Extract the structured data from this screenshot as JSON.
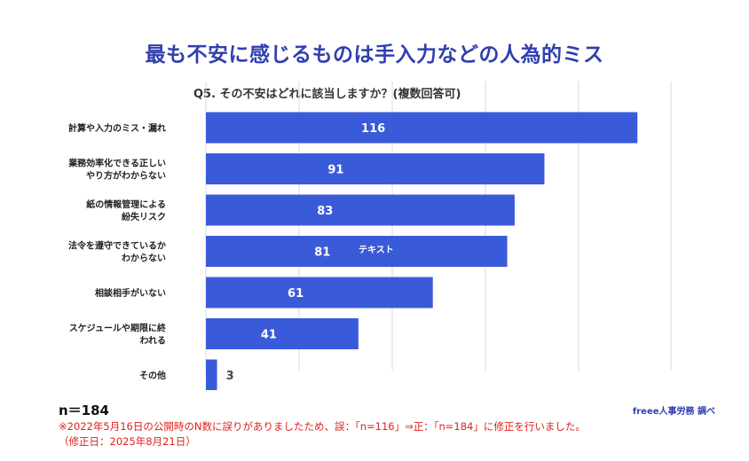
{
  "page_title": "最も不安に感じるものは手入力などの人為的ミス",
  "overlay_text": "テキスト",
  "sample_size": "n＝184",
  "source": "freee人事労務 調べ",
  "note": {
    "line1": "※2022年5月16日の公開時のN数に誤りがありましたため、誤：「n=116」⇒正：「n=184」に修正を行いました。",
    "line2": "（修正日：2025年8月21日）"
  },
  "colors": {
    "bar": "#3a5bd9",
    "title": "#2f3fb0",
    "note": "#e0201b",
    "grid": "#d9d9d9"
  },
  "chart_data": {
    "type": "bar",
    "orientation": "horizontal",
    "title": "Q5. その不安はどれに該当しますか？(複数回答可)",
    "categories": [
      [
        "計算や入力のミス・漏れ"
      ],
      [
        "業務効率化できる正しい",
        "やり方がわからない"
      ],
      [
        "紙の情報管理による",
        "紛失リスク"
      ],
      [
        "法令を遵守できているか",
        "わからない"
      ],
      [
        "相談相手がいない"
      ],
      [
        "スケジュールや期限に終",
        "われる"
      ],
      [
        "その他"
      ]
    ],
    "values": [
      116,
      91,
      83,
      81,
      61,
      41,
      3
    ],
    "xlim": [
      0,
      125
    ],
    "grid": true
  }
}
